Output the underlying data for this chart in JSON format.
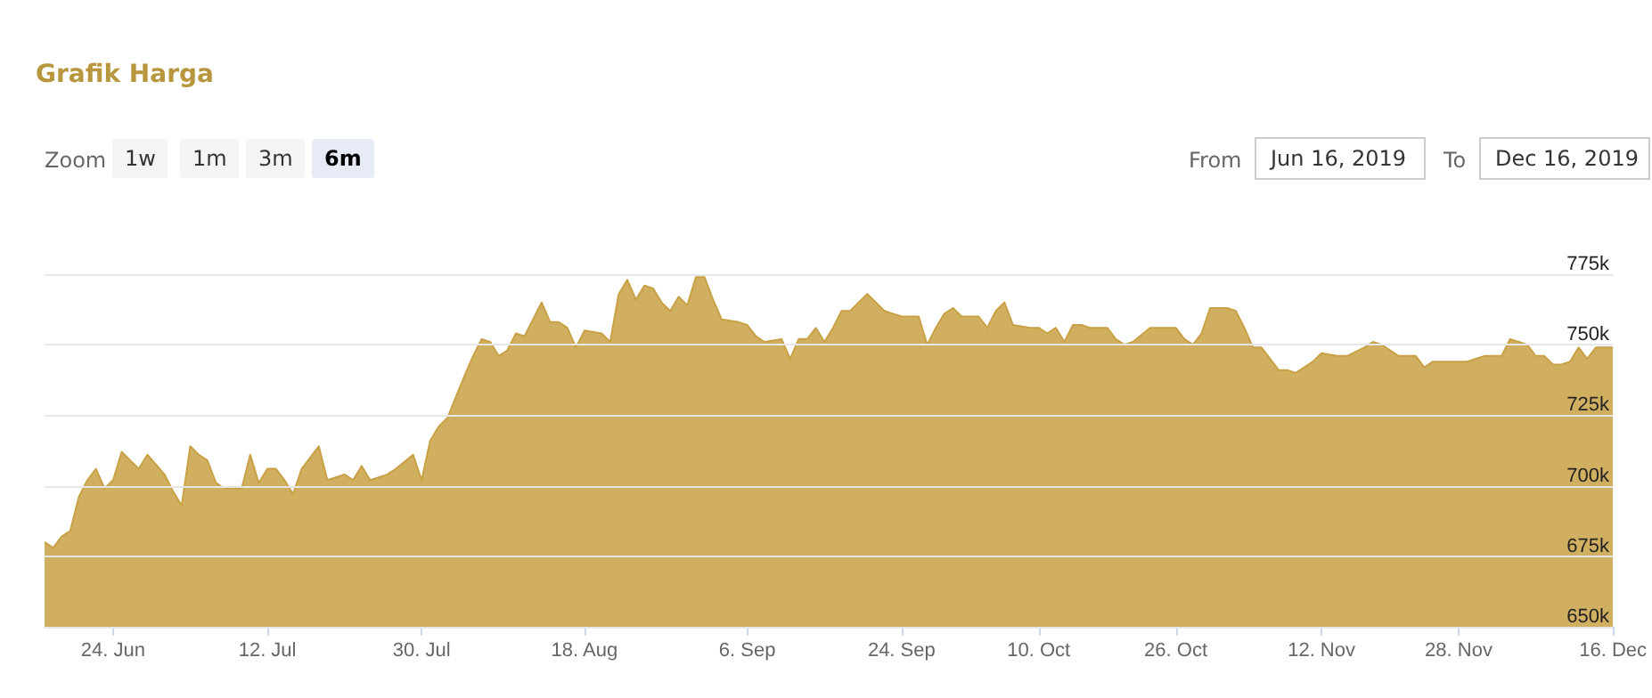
{
  "chart_data": {
    "type": "area",
    "title": "Grafik Harga",
    "annotations": [
      "Zoom",
      "1w",
      "1m",
      "3m",
      "6m",
      "From",
      "Jun 16, 2019",
      "To",
      "Dec 16, 2019"
    ],
    "x": [
      "2019-06-16",
      "2019-06-17",
      "2019-06-18",
      "2019-06-19",
      "2019-06-20",
      "2019-06-21",
      "2019-06-22",
      "2019-06-23",
      "2019-06-24",
      "2019-06-25",
      "2019-06-26",
      "2019-06-27",
      "2019-06-28",
      "2019-06-30",
      "2019-07-01",
      "2019-07-02",
      "2019-07-03",
      "2019-07-04",
      "2019-07-05",
      "2019-07-06",
      "2019-07-07",
      "2019-07-09",
      "2019-07-10",
      "2019-07-11",
      "2019-07-12",
      "2019-07-13",
      "2019-07-14",
      "2019-07-15",
      "2019-07-16",
      "2019-07-18",
      "2019-07-19",
      "2019-07-21",
      "2019-07-22",
      "2019-07-23",
      "2019-07-24",
      "2019-07-25",
      "2019-07-26",
      "2019-07-27",
      "2019-07-29",
      "2019-07-30",
      "2019-07-31",
      "2019-08-01",
      "2019-08-02",
      "2019-08-04",
      "2019-08-05",
      "2019-08-06",
      "2019-08-07",
      "2019-08-08",
      "2019-08-09",
      "2019-08-10",
      "2019-08-11",
      "2019-08-13",
      "2019-08-14",
      "2019-08-15",
      "2019-08-16",
      "2019-08-17",
      "2019-08-18",
      "2019-08-20",
      "2019-08-21",
      "2019-08-22",
      "2019-08-23",
      "2019-08-24",
      "2019-08-25",
      "2019-08-26",
      "2019-08-27",
      "2019-08-28",
      "2019-08-29",
      "2019-08-30",
      "2019-08-31",
      "2019-09-01",
      "2019-09-02",
      "2019-09-03",
      "2019-09-05",
      "2019-09-06",
      "2019-09-07",
      "2019-09-08",
      "2019-09-10",
      "2019-09-11",
      "2019-09-12",
      "2019-09-13",
      "2019-09-14",
      "2019-09-15",
      "2019-09-16",
      "2019-09-17",
      "2019-09-18",
      "2019-09-19",
      "2019-09-20",
      "2019-09-22",
      "2019-09-23",
      "2019-09-24",
      "2019-09-26",
      "2019-09-27",
      "2019-09-28",
      "2019-09-29",
      "2019-09-30",
      "2019-10-01",
      "2019-10-03",
      "2019-10-04",
      "2019-10-05",
      "2019-10-06",
      "2019-10-07",
      "2019-10-09",
      "2019-10-10",
      "2019-10-11",
      "2019-10-12",
      "2019-10-13",
      "2019-10-14",
      "2019-10-15",
      "2019-10-16",
      "2019-10-18",
      "2019-10-19",
      "2019-10-20",
      "2019-10-21",
      "2019-10-23",
      "2019-10-26",
      "2019-10-27",
      "2019-10-28",
      "2019-10-29",
      "2019-10-30",
      "2019-11-01",
      "2019-11-02",
      "2019-11-03",
      "2019-11-04",
      "2019-11-05",
      "2019-11-07",
      "2019-11-08",
      "2019-11-09",
      "2019-11-11",
      "2019-11-12",
      "2019-11-14",
      "2019-11-15",
      "2019-11-17",
      "2019-11-18",
      "2019-11-19",
      "2019-11-21",
      "2019-11-23",
      "2019-11-24",
      "2019-11-25",
      "2019-11-27",
      "2019-11-29",
      "2019-12-01",
      "2019-12-02",
      "2019-12-03",
      "2019-12-04",
      "2019-12-05",
      "2019-12-06",
      "2019-12-07",
      "2019-12-08",
      "2019-12-09",
      "2019-12-10",
      "2019-12-11",
      "2019-12-12",
      "2019-12-13",
      "2019-12-14",
      "2019-12-16"
    ],
    "series": [
      {
        "color": "#c9a145",
        "values": [
          680000,
          678000,
          682000,
          684000,
          696000,
          702000,
          706000,
          699000,
          702000,
          712000,
          709000,
          706000,
          711000,
          704000,
          698000,
          693000,
          714000,
          711000,
          709000,
          701000,
          699000,
          699000,
          711000,
          701000,
          706000,
          706000,
          702000,
          697000,
          706000,
          714000,
          702000,
          704000,
          702000,
          707000,
          702000,
          703000,
          704000,
          706000,
          711000,
          702000,
          716000,
          721000,
          724000,
          739000,
          746000,
          752000,
          751000,
          746000,
          748000,
          754000,
          753000,
          765000,
          758000,
          758000,
          756000,
          749000,
          755000,
          754000,
          751000,
          768000,
          773000,
          766000,
          771000,
          770000,
          765000,
          762000,
          767000,
          764000,
          774000,
          774000,
          766000,
          759000,
          758000,
          757000,
          753000,
          751000,
          752000,
          745000,
          752000,
          752000,
          756000,
          751000,
          756000,
          762000,
          762000,
          765000,
          768000,
          762000,
          761000,
          760000,
          760000,
          750000,
          756000,
          761000,
          763000,
          760000,
          760000,
          756000,
          762000,
          765000,
          757000,
          756000,
          756000,
          754000,
          756000,
          751000,
          757000,
          757000,
          756000,
          756000,
          752000,
          750000,
          751000,
          756000,
          756000,
          752000,
          750000,
          754000,
          763000,
          763000,
          762000,
          756000,
          749000,
          749000,
          741000,
          741000,
          740000,
          744000,
          747000,
          746000,
          746000,
          749000,
          751000,
          750000,
          746000,
          746000,
          742000,
          744000,
          744000,
          744000,
          746000,
          746000,
          746000,
          752000,
          751000,
          750000,
          746000,
          746000,
          743000,
          743000,
          744000,
          749000,
          745000,
          749000,
          749000
        ]
      }
    ],
    "xlim": [
      "2019-06-16",
      "2019-12-16"
    ],
    "xticks": [
      {
        "value": "2019-06-24",
        "label": "24. Jun"
      },
      {
        "value": "2019-07-12",
        "label": "12. Jul"
      },
      {
        "value": "2019-07-30",
        "label": "30. Jul"
      },
      {
        "value": "2019-08-18",
        "label": "18. Aug"
      },
      {
        "value": "2019-09-06",
        "label": "6. Sep"
      },
      {
        "value": "2019-09-24",
        "label": "24. Sep"
      },
      {
        "value": "2019-10-10",
        "label": "10. Oct"
      },
      {
        "value": "2019-10-26",
        "label": "26. Oct"
      },
      {
        "value": "2019-11-12",
        "label": "12. Nov"
      },
      {
        "value": "2019-11-28",
        "label": "28. Nov"
      },
      {
        "value": "2019-12-16",
        "label": "16. Dec"
      }
    ],
    "ylim": [
      650000,
      775000
    ],
    "yticks": [
      {
        "value": 650000,
        "label": "650k"
      },
      {
        "value": 675000,
        "label": "675k"
      },
      {
        "value": 700000,
        "label": "700k"
      },
      {
        "value": 725000,
        "label": "725k"
      },
      {
        "value": 750000,
        "label": "750k"
      },
      {
        "value": 775000,
        "label": "775k"
      }
    ],
    "grid": "y",
    "marker": "none",
    "line_style": "solid"
  }
}
